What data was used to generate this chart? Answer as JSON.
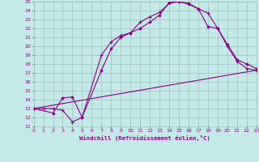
{
  "xlabel": "Windchill (Refroidissement éolien,°C)",
  "bg_color": "#c5e8e8",
  "grid_color": "#9fbfbf",
  "line_color": "#880088",
  "xmin": 0,
  "xmax": 23,
  "ymin": 11,
  "ymax": 25,
  "line1_x": [
    0,
    1,
    2,
    3,
    4,
    5,
    7,
    8,
    9,
    10,
    11,
    12,
    13,
    14,
    15,
    16,
    17,
    18,
    19,
    20,
    21,
    22,
    23
  ],
  "line1_y": [
    13,
    13,
    13,
    12.8,
    11.5,
    12.0,
    19.0,
    20.5,
    21.2,
    21.5,
    22.7,
    23.3,
    23.8,
    24.8,
    25.0,
    24.7,
    24.2,
    23.7,
    22.0,
    20.0,
    18.3,
    17.5,
    17.3
  ],
  "line2_x": [
    0,
    2,
    3,
    4,
    5,
    7,
    8,
    9,
    10,
    11,
    12,
    13,
    14,
    15,
    16,
    17,
    18,
    19,
    20,
    21,
    22,
    23
  ],
  "line2_y": [
    13,
    12.5,
    14.2,
    14.3,
    12.0,
    17.3,
    19.7,
    21.0,
    21.5,
    22.0,
    22.7,
    23.5,
    24.9,
    25.0,
    24.8,
    24.2,
    22.2,
    22.0,
    20.2,
    18.5,
    18.0,
    17.5
  ],
  "line3_x": [
    0,
    23
  ],
  "line3_y": [
    13,
    17.3
  ]
}
